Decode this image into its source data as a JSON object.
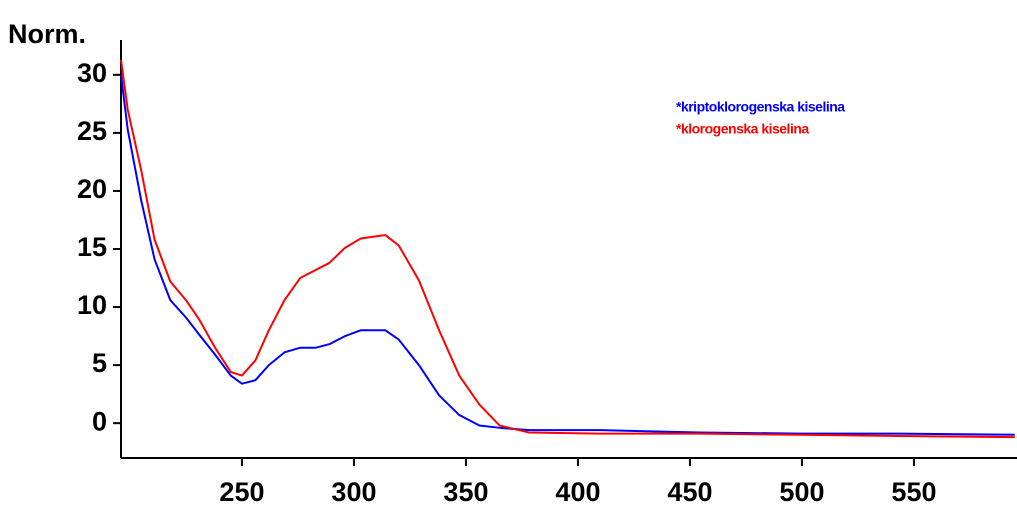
{
  "chart_data": {
    "type": "line",
    "y_label": "Norm.",
    "x": [
      196,
      199,
      205,
      211,
      218,
      225,
      231,
      238,
      245,
      250,
      256,
      262,
      269,
      276,
      283,
      289,
      296,
      303,
      314,
      320,
      329,
      338,
      347,
      356,
      365,
      378,
      410,
      454,
      499,
      543,
      595
    ],
    "series": [
      {
        "name": "*kriptoklorogenska kiselina",
        "color": "#0000ff",
        "values": [
          30.0,
          25.3,
          19.2,
          14.1,
          10.6,
          9.1,
          7.6,
          5.9,
          4.1,
          3.4,
          3.7,
          5.0,
          6.1,
          6.5,
          6.5,
          6.8,
          7.5,
          8.0,
          8.0,
          7.2,
          5.0,
          2.4,
          0.7,
          -0.2,
          -0.4,
          -0.6,
          -0.6,
          -0.8,
          -0.9,
          -0.9,
          -1.0
        ]
      },
      {
        "name": "*klorogenska kiselina",
        "color": "#ff0000",
        "values": [
          31.3,
          27.0,
          21.8,
          15.8,
          12.2,
          10.6,
          8.9,
          6.5,
          4.4,
          4.1,
          5.4,
          8.0,
          10.6,
          12.5,
          13.2,
          13.8,
          15.1,
          15.9,
          16.2,
          15.3,
          12.3,
          8.0,
          4.1,
          1.6,
          -0.2,
          -0.8,
          -0.9,
          -0.9,
          -1.0,
          -1.1,
          -1.2
        ]
      }
    ],
    "xlim": [
      196,
      596
    ],
    "ylim": [
      -3,
      33
    ],
    "xticks": [
      250,
      300,
      350,
      400,
      450,
      500,
      550
    ],
    "yticks": [
      0,
      5,
      10,
      15,
      20,
      25,
      30
    ],
    "grid": false,
    "legend": "top-right"
  }
}
